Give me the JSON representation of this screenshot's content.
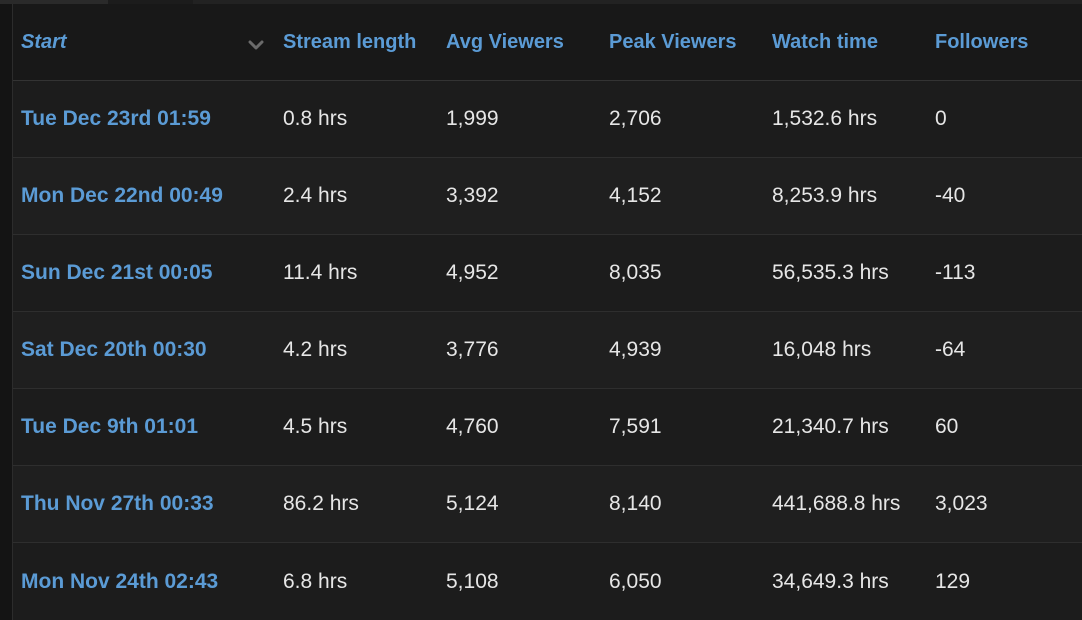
{
  "table": {
    "headers": {
      "start": "Start",
      "stream_length": "Stream length",
      "avg_viewers": "Avg Viewers",
      "peak_viewers": "Peak Viewers",
      "watch_time": "Watch time",
      "followers": "Followers"
    },
    "sort_icon": "chevron-down-icon",
    "rows": [
      {
        "start": "Tue Dec 23rd 01:59",
        "stream_length": "0.8 hrs",
        "avg_viewers": "1,999",
        "peak_viewers": "2,706",
        "watch_time": "1,532.6 hrs",
        "followers": "0"
      },
      {
        "start": "Mon Dec 22nd 00:49",
        "stream_length": "2.4 hrs",
        "avg_viewers": "3,392",
        "peak_viewers": "4,152",
        "watch_time": "8,253.9 hrs",
        "followers": "-40"
      },
      {
        "start": "Sun Dec 21st 00:05",
        "stream_length": "11.4 hrs",
        "avg_viewers": "4,952",
        "peak_viewers": "8,035",
        "watch_time": "56,535.3 hrs",
        "followers": "-113"
      },
      {
        "start": "Sat Dec 20th 00:30",
        "stream_length": "4.2 hrs",
        "avg_viewers": "3,776",
        "peak_viewers": "4,939",
        "watch_time": "16,048 hrs",
        "followers": "-64"
      },
      {
        "start": "Tue Dec 9th 01:01",
        "stream_length": "4.5 hrs",
        "avg_viewers": "4,760",
        "peak_viewers": "7,591",
        "watch_time": "21,340.7 hrs",
        "followers": "60"
      },
      {
        "start": "Thu Nov 27th 00:33",
        "stream_length": "86.2 hrs",
        "avg_viewers": "5,124",
        "peak_viewers": "8,140",
        "watch_time": "441,688.8 hrs",
        "followers": "3,023"
      },
      {
        "start": "Mon Nov 24th 02:43",
        "stream_length": "6.8 hrs",
        "avg_viewers": "5,108",
        "peak_viewers": "6,050",
        "watch_time": "34,649.3 hrs",
        "followers": "129"
      }
    ]
  },
  "colors": {
    "background": "#141414",
    "accent": "#5b9bd5",
    "text": "#e6e6e6",
    "row_border": "#2e2e2e"
  }
}
